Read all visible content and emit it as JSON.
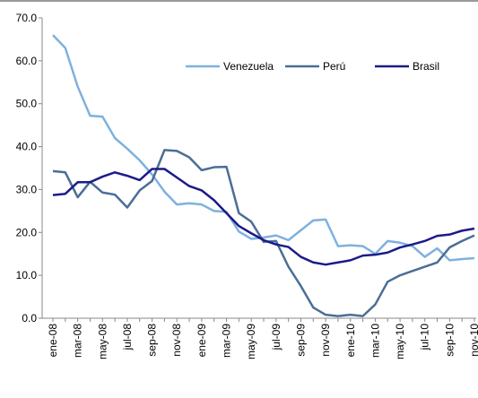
{
  "chart_data": {
    "type": "line",
    "categories": [
      "ene-08",
      null,
      "mar-08",
      null,
      "may-08",
      null,
      "jul-08",
      null,
      "sep-08",
      null,
      "nov-08",
      null,
      "ene-09",
      null,
      "mar-09",
      null,
      "may-09",
      null,
      "jul-09",
      null,
      "sep-09",
      null,
      "nov-09",
      null,
      "ene-10",
      null,
      "mar-10",
      null,
      "may-10",
      null,
      "jul-10",
      null,
      "sep-10",
      null,
      "nov-10"
    ],
    "series": [
      {
        "name": "Venezuela",
        "color": "#7eb1de",
        "values": [
          66,
          63,
          54,
          47.2,
          47,
          42,
          39.5,
          36.8,
          33.5,
          29.5,
          26.5,
          26.8,
          26.5,
          25,
          24.8,
          20.2,
          18.5,
          18.8,
          19.3,
          18.2,
          20.5,
          22.8,
          23,
          16.8,
          17,
          16.8,
          15,
          18,
          17.6,
          16.8,
          14.3,
          16.3,
          13.5,
          13.8,
          14
        ]
      },
      {
        "name": "Perú",
        "color": "#4a6e96",
        "values": [
          34.3,
          34,
          28.2,
          31.8,
          29.3,
          28.8,
          25.8,
          29.8,
          32,
          39.2,
          39,
          37.5,
          34.5,
          35.2,
          35.3,
          24.5,
          22.5,
          17.8,
          18,
          12,
          7.5,
          2.5,
          0.8,
          0.5,
          0.8,
          0.5,
          3.2,
          8.5,
          10,
          11,
          12,
          13,
          16.5,
          18,
          19.3
        ]
      },
      {
        "name": "Brasil",
        "color": "#1b1a8a",
        "values": [
          28.7,
          29,
          31.7,
          31.7,
          33,
          34,
          33.2,
          32.2,
          34.8,
          34.8,
          32.8,
          30.8,
          29.8,
          27.5,
          24.5,
          21.5,
          19.8,
          18.2,
          17.2,
          16.6,
          14.3,
          13,
          12.5,
          13,
          13.5,
          14.6,
          14.8,
          15.3,
          16.5,
          17.2,
          18,
          19.2,
          19.5,
          20.4,
          20.9
        ]
      }
    ],
    "ylim": [
      0,
      70
    ],
    "yticks": [
      {
        "value": 0,
        "label": "0.0"
      },
      {
        "value": 10,
        "label": "10.0"
      },
      {
        "value": 20,
        "label": "20.0"
      },
      {
        "value": 30,
        "label": "30.0"
      },
      {
        "value": 40,
        "label": "40.0"
      },
      {
        "value": 50,
        "label": "50.0"
      },
      {
        "value": 60,
        "label": "60.0"
      },
      {
        "value": 70,
        "label": "70.0"
      }
    ],
    "grid": false
  }
}
